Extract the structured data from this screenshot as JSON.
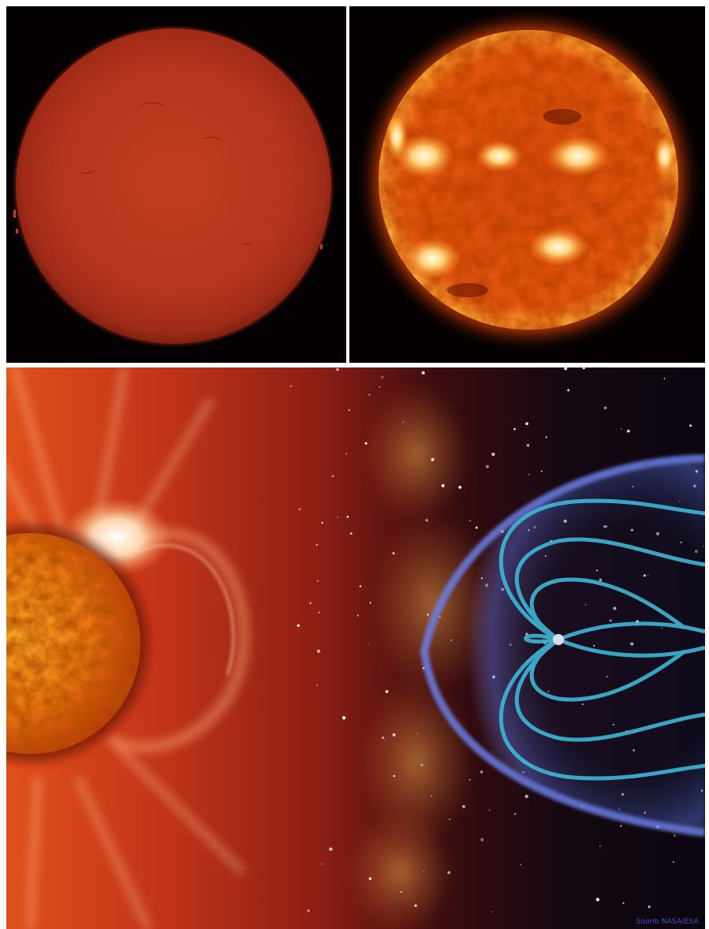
{
  "panels": {
    "top_left": {
      "subject": "sun-disk-h-alpha"
    },
    "top_right": {
      "subject": "sun-disk-extreme-ultraviolet"
    },
    "bottom": {
      "subject": "solar-wind-magnetosphere",
      "credit": "Soonb NASA/ESA"
    }
  },
  "colors": {
    "h_alpha_disk": "#b8311a",
    "euv_disk": "#e85a10",
    "corona": "#ff6a1a",
    "magnetosphere": "#3fb6d6",
    "bow_shock": "#5a6fd8",
    "space": "#0b0610"
  }
}
